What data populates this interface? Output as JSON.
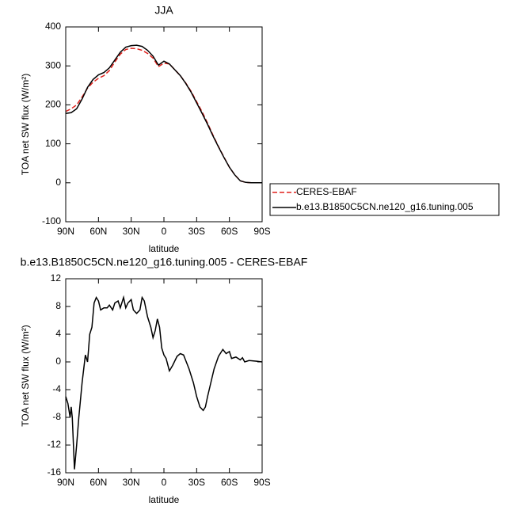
{
  "chart_data": [
    {
      "type": "line",
      "title": "JJA",
      "xlabel": "latitude",
      "ylabel": "TOA net SW flux (W/m²)",
      "x": [
        90,
        85,
        80,
        75,
        70,
        65,
        60,
        55,
        50,
        45,
        40,
        35,
        30,
        25,
        20,
        15,
        10,
        5,
        0,
        -5,
        -10,
        -15,
        -20,
        -25,
        -30,
        -35,
        -40,
        -45,
        -50,
        -55,
        -60,
        -65,
        -70,
        -75,
        -80,
        -85,
        -90
      ],
      "series": [
        {
          "name": "CERES-EBAF",
          "color": "#e0201b",
          "dash": true,
          "values": [
            183,
            190,
            200,
            220,
            243,
            258,
            268,
            275,
            288,
            310,
            330,
            342,
            345,
            344,
            340,
            332,
            320,
            298,
            307,
            305,
            290,
            275,
            256,
            234,
            208,
            182,
            153,
            122,
            93,
            66,
            40,
            20,
            5,
            1,
            0,
            0,
            0
          ]
        },
        {
          "name": "b.e13.B1850C5CN.ne120_g16.tuning.005",
          "color": "#000000",
          "dash": false,
          "values": [
            178,
            180,
            190,
            215,
            245,
            265,
            277,
            283,
            295,
            315,
            335,
            348,
            352,
            353,
            350,
            340,
            325,
            302,
            312,
            305,
            290,
            275,
            255,
            232,
            205,
            178,
            150,
            120,
            92,
            65,
            40,
            20,
            5,
            1,
            0,
            0,
            0
          ]
        }
      ],
      "xlim": [
        90,
        -90
      ],
      "xticks": [
        {
          "value": 90,
          "label": "90N"
        },
        {
          "value": 60,
          "label": "60N"
        },
        {
          "value": 30,
          "label": "30N"
        },
        0,
        {
          "value": -30,
          "label": "30S"
        },
        {
          "value": -60,
          "label": "60S"
        },
        {
          "value": -90,
          "label": "90S"
        }
      ],
      "ylim": [
        -100,
        400
      ],
      "yticks": [
        -100,
        0,
        100,
        200,
        300,
        400
      ],
      "legend": "right"
    },
    {
      "type": "line",
      "title": "b.e13.B1850C5CN.ne120_g16.tuning.005 - CERES-EBAF",
      "xlabel": "latitude",
      "ylabel": "TOA net SW flux (W/m²)",
      "x": [
        90,
        88,
        86,
        85,
        84,
        82,
        80,
        78,
        75,
        72,
        70,
        68,
        66,
        64,
        62,
        60,
        58,
        55,
        52,
        50,
        47,
        45,
        42,
        40,
        37,
        35,
        33,
        30,
        28,
        25,
        22,
        20,
        18,
        15,
        12,
        10,
        8,
        6,
        4,
        2,
        0,
        -2,
        -5,
        -8,
        -12,
        -15,
        -18,
        -20,
        -23,
        -27,
        -30,
        -33,
        -36,
        -38,
        -40,
        -43,
        -46,
        -50,
        -54,
        -57,
        -60,
        -62,
        -66,
        -70,
        -72,
        -74,
        -78,
        -85,
        -90
      ],
      "series": [
        {
          "name": null,
          "color": "#000000",
          "dash": false,
          "values": [
            -5,
            -6,
            -8,
            -6.5,
            -8,
            -15.5,
            -12,
            -8,
            -3,
            1,
            0,
            4,
            5,
            8.5,
            9.3,
            8.8,
            7.5,
            7.8,
            7.8,
            8.2,
            7.5,
            8.5,
            8.8,
            7.8,
            9.3,
            7.8,
            8.5,
            9,
            7.5,
            7,
            7.5,
            9.3,
            8.8,
            6.5,
            5,
            3.5,
            4.5,
            6.2,
            5,
            2,
            1,
            0.5,
            -1.3,
            -0.5,
            0.8,
            1.2,
            1,
            0.2,
            -1,
            -3,
            -5,
            -6.5,
            -7,
            -6.5,
            -5,
            -3,
            -1,
            0.8,
            1.8,
            1.2,
            1.5,
            0.5,
            0.7,
            0.3,
            0.6,
            0,
            0.2,
            0.1,
            0
          ]
        }
      ],
      "xlim": [
        90,
        -90
      ],
      "xticks": [
        {
          "value": 90,
          "label": "90N"
        },
        {
          "value": 60,
          "label": "60N"
        },
        {
          "value": 30,
          "label": "30N"
        },
        0,
        {
          "value": -30,
          "label": "30S"
        },
        {
          "value": -60,
          "label": "60S"
        },
        {
          "value": -90,
          "label": "90S"
        }
      ],
      "ylim": [
        -16,
        12
      ],
      "yticks": [
        -16,
        -12,
        -8,
        -4,
        0,
        4,
        8,
        12
      ],
      "legend": null
    }
  ]
}
